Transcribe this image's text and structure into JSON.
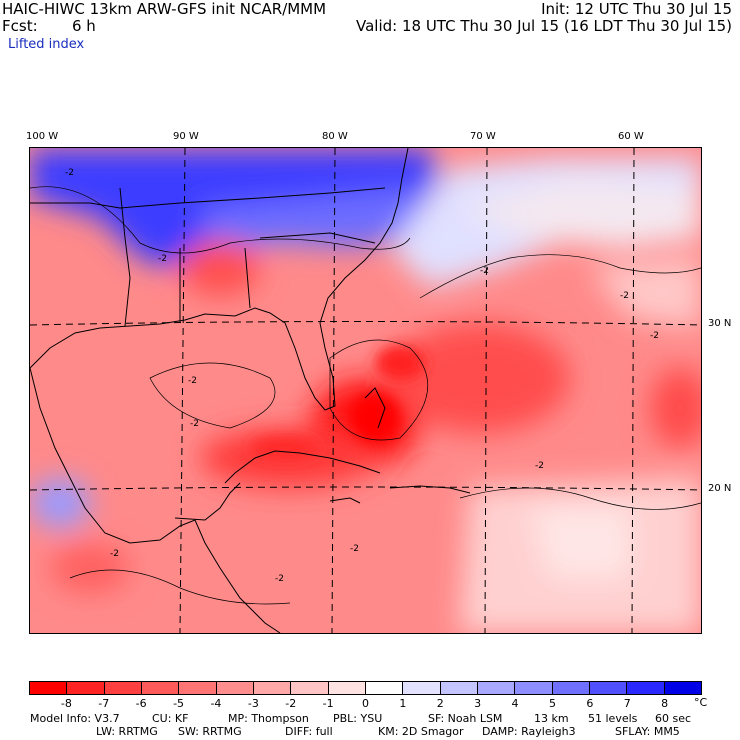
{
  "header": {
    "model_title": "HAIC-HIWC 13km ARW-GFS init   NCAR/MMM",
    "init": "Init: 12 UTC Thu 30 Jul 15",
    "fcst_label": "Fcst:",
    "fcst_value": "6 h",
    "valid": "Valid: 18 UTC Thu 30 Jul 15 (16 LDT Thu 30 Jul 15)",
    "field": "Lifted index"
  },
  "axes": {
    "lon_labels": [
      "100 W",
      "90 W",
      "80 W",
      "70 W",
      "60 W"
    ],
    "lat_labels": [
      "30 N",
      "20 N"
    ]
  },
  "contour_labels": [
    "-2",
    "-2",
    "-2",
    "-2",
    "-2",
    "-2",
    "-2",
    "-2",
    "-2",
    "-2",
    "-2"
  ],
  "colorbar": {
    "ticks": [
      "-8",
      "-7",
      "-6",
      "-5",
      "-4",
      "-3",
      "-2",
      "-1",
      "0",
      "1",
      "2",
      "3",
      "4",
      "5",
      "6",
      "7",
      "8"
    ],
    "unit": "°C",
    "colors": [
      "#ff0000",
      "#ff2424",
      "#ff4040",
      "#ff5a5a",
      "#ff7474",
      "#ff8e8e",
      "#ffa8a8",
      "#ffc4c4",
      "#ffe2e2",
      "#ffffff",
      "#e2e2ff",
      "#c4c4ff",
      "#a8a8ff",
      "#8e8eff",
      "#7070ff",
      "#5050ff",
      "#2828ff",
      "#0000e6"
    ]
  },
  "footer": {
    "line1": [
      "Model Info: V3.7",
      "CU: KF",
      "MP: Thompson",
      "PBL: YSU",
      "SF: Noah LSM",
      "13 km",
      "51 levels",
      "60 sec"
    ],
    "line2": [
      "LW: RRTMG",
      "SW: RRTMG",
      "DIFF: full",
      "KM: 2D Smagor",
      "DAMP: Rayleigh3",
      "SFLAY: MM5"
    ]
  }
}
